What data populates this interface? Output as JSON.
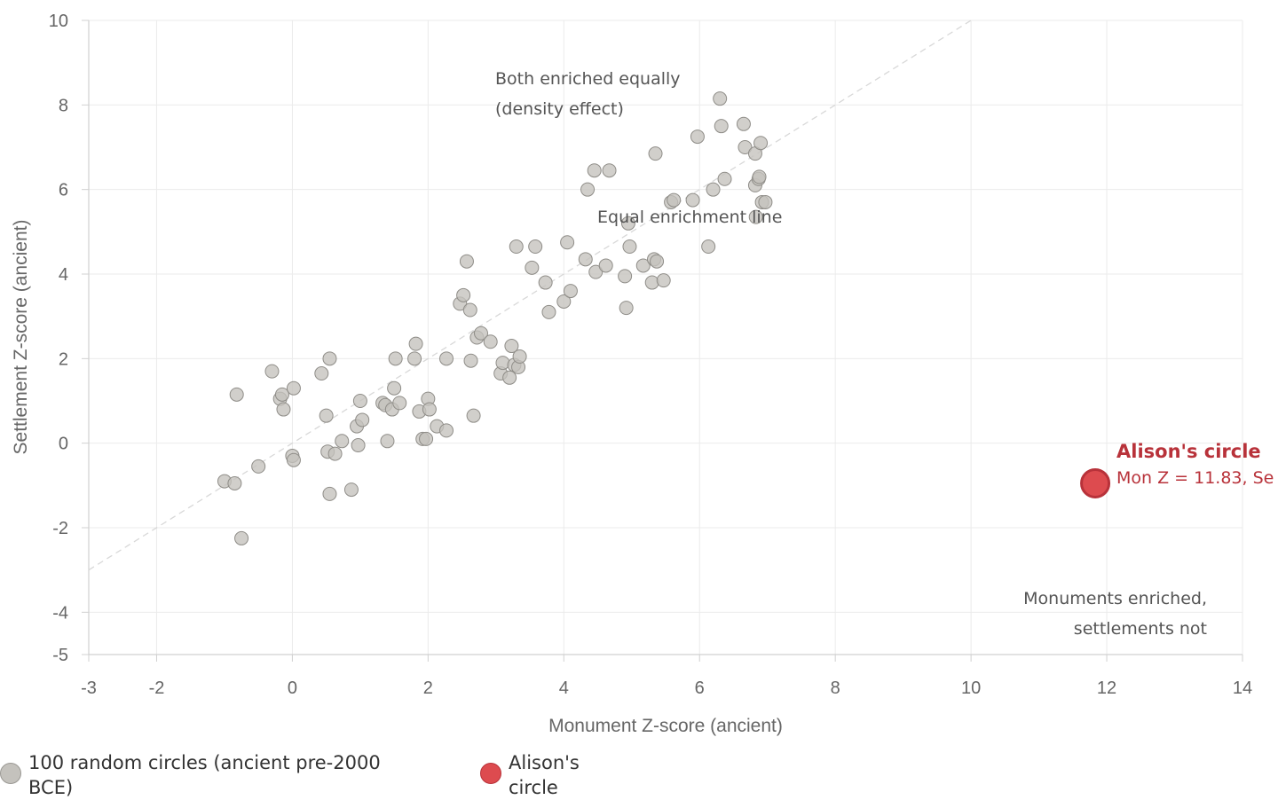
{
  "chart_data": {
    "type": "scatter",
    "xlabel": "Monument Z-score (ancient)",
    "ylabel": "Settlement Z-score (ancient)",
    "xlim": [
      -3,
      14
    ],
    "ylim": [
      -5,
      10
    ],
    "xticks": [
      "-3",
      "-2",
      "0",
      "2",
      "4",
      "6",
      "8",
      "10",
      "12",
      "14"
    ],
    "yticks": [
      "10",
      "8",
      "6",
      "4",
      "2",
      "0",
      "-2",
      "-4",
      "-5"
    ],
    "grid": true,
    "legend_position": "bottom-left",
    "reference_line": {
      "label": "Equal enrichment line",
      "from": [
        -3,
        -3
      ],
      "to": [
        10,
        10
      ]
    },
    "annotations": [
      {
        "lines": [
          "Both enriched equally",
          "(density effect)"
        ]
      },
      {
        "lines": [
          "Monuments enriched,",
          "settlements not"
        ]
      }
    ],
    "highlight": {
      "title": "Alison's circle",
      "subtitle": "Mon Z = 11.83, Se",
      "x": 11.83,
      "y": -0.95
    },
    "series": [
      {
        "name": "100 random circles (ancient pre-2000 BCE)",
        "color": "#c4c2bd",
        "points": [
          [
            -1.0,
            -0.9
          ],
          [
            -0.85,
            -0.95
          ],
          [
            -0.82,
            1.15
          ],
          [
            -0.75,
            -2.25
          ],
          [
            -0.5,
            -0.55
          ],
          [
            -0.3,
            1.7
          ],
          [
            -0.18,
            1.05
          ],
          [
            -0.15,
            1.15
          ],
          [
            -0.13,
            0.8
          ],
          [
            0.0,
            -0.3
          ],
          [
            0.02,
            1.3
          ],
          [
            0.02,
            -0.4
          ],
          [
            0.43,
            1.65
          ],
          [
            0.5,
            0.65
          ],
          [
            0.52,
            -0.2
          ],
          [
            0.55,
            2.0
          ],
          [
            0.55,
            -1.2
          ],
          [
            0.63,
            -0.25
          ],
          [
            0.73,
            0.05
          ],
          [
            0.87,
            -1.1
          ],
          [
            0.95,
            0.4
          ],
          [
            0.97,
            -0.05
          ],
          [
            1.0,
            1.0
          ],
          [
            1.03,
            0.55
          ],
          [
            1.33,
            0.95
          ],
          [
            1.37,
            0.9
          ],
          [
            1.4,
            0.05
          ],
          [
            1.47,
            0.8
          ],
          [
            1.5,
            1.3
          ],
          [
            1.52,
            2.0
          ],
          [
            1.58,
            0.95
          ],
          [
            1.8,
            2.0
          ],
          [
            1.82,
            2.35
          ],
          [
            1.87,
            0.75
          ],
          [
            1.92,
            0.1
          ],
          [
            1.97,
            0.1
          ],
          [
            2.0,
            1.05
          ],
          [
            2.02,
            0.8
          ],
          [
            2.13,
            0.4
          ],
          [
            2.27,
            0.3
          ],
          [
            2.27,
            2.0
          ],
          [
            2.47,
            3.3
          ],
          [
            2.52,
            3.5
          ],
          [
            2.57,
            4.3
          ],
          [
            2.62,
            3.15
          ],
          [
            2.63,
            1.95
          ],
          [
            2.67,
            0.65
          ],
          [
            2.72,
            2.5
          ],
          [
            2.78,
            2.6
          ],
          [
            2.92,
            2.4
          ],
          [
            3.07,
            1.65
          ],
          [
            3.1,
            1.9
          ],
          [
            3.2,
            1.55
          ],
          [
            3.23,
            2.3
          ],
          [
            3.27,
            1.85
          ],
          [
            3.3,
            4.65
          ],
          [
            3.33,
            1.8
          ],
          [
            3.35,
            2.05
          ],
          [
            3.53,
            4.15
          ],
          [
            3.58,
            4.65
          ],
          [
            3.73,
            3.8
          ],
          [
            3.78,
            3.1
          ],
          [
            4.0,
            3.35
          ],
          [
            4.05,
            4.75
          ],
          [
            4.1,
            3.6
          ],
          [
            4.32,
            4.35
          ],
          [
            4.35,
            6.0
          ],
          [
            4.45,
            6.45
          ],
          [
            4.47,
            4.05
          ],
          [
            4.62,
            4.2
          ],
          [
            4.67,
            6.45
          ],
          [
            4.9,
            3.95
          ],
          [
            4.92,
            3.2
          ],
          [
            4.95,
            5.2
          ],
          [
            4.97,
            4.65
          ],
          [
            5.17,
            4.2
          ],
          [
            5.3,
            3.8
          ],
          [
            5.33,
            4.35
          ],
          [
            5.35,
            6.85
          ],
          [
            5.37,
            4.3
          ],
          [
            5.47,
            3.85
          ],
          [
            5.58,
            5.7
          ],
          [
            5.62,
            5.75
          ],
          [
            5.9,
            5.75
          ],
          [
            5.97,
            7.25
          ],
          [
            6.13,
            4.65
          ],
          [
            6.2,
            6.0
          ],
          [
            6.3,
            8.15
          ],
          [
            6.32,
            7.5
          ],
          [
            6.37,
            6.25
          ],
          [
            6.65,
            7.55
          ],
          [
            6.67,
            7.0
          ],
          [
            6.82,
            6.85
          ],
          [
            6.82,
            6.1
          ],
          [
            6.83,
            5.35
          ],
          [
            6.87,
            6.25
          ],
          [
            6.88,
            6.3
          ],
          [
            6.9,
            7.1
          ],
          [
            6.92,
            5.7
          ],
          [
            6.97,
            5.7
          ]
        ]
      },
      {
        "name": "Alison's circle",
        "color": "#dd4b4f",
        "points": [
          [
            11.83,
            -0.95
          ]
        ]
      }
    ]
  }
}
